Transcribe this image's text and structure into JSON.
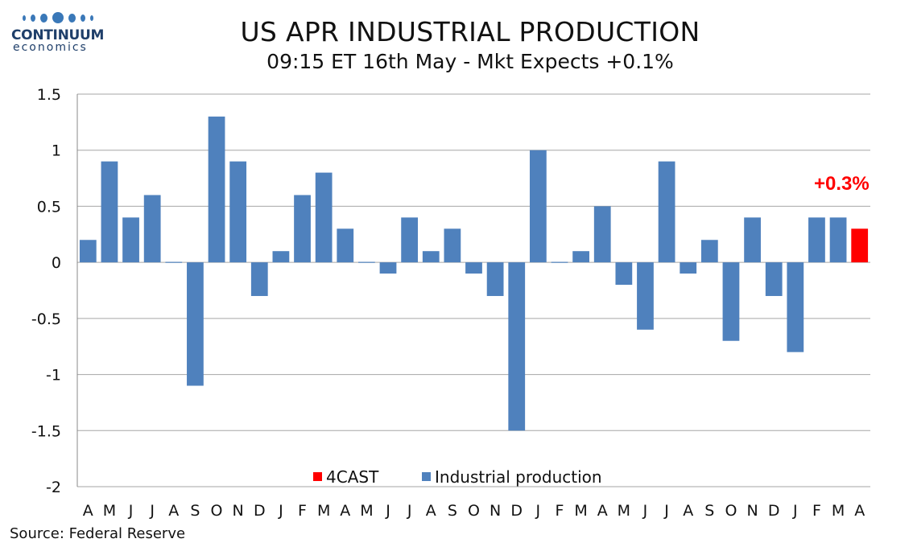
{
  "logo": {
    "word": "CONTINUUM",
    "sub": "economics",
    "color": "#3a78b8"
  },
  "title": "US APR INDUSTRIAL PRODUCTION",
  "subtitle": "09:15 ET 16th May - Mkt Expects +0.1%",
  "source": "Source: Federal Reserve",
  "chart_data": {
    "type": "bar",
    "categories": [
      "A",
      "M",
      "J",
      "J",
      "A",
      "S",
      "O",
      "N",
      "D",
      "J",
      "F",
      "M",
      "A",
      "M",
      "J",
      "J",
      "A",
      "S",
      "O",
      "N",
      "D",
      "J",
      "F",
      "M",
      "A",
      "M",
      "J",
      "J",
      "A",
      "S",
      "O",
      "N",
      "D",
      "J",
      "F",
      "M",
      "A"
    ],
    "series": [
      {
        "name": "Industrial production",
        "color": "#4f81bd",
        "values": [
          0.2,
          0.9,
          0.4,
          0.6,
          0.0,
          -1.1,
          1.3,
          0.9,
          -0.3,
          0.1,
          0.6,
          0.8,
          0.3,
          0.0,
          -0.1,
          0.4,
          0.1,
          0.3,
          -0.1,
          -0.3,
          -1.5,
          1.0,
          0.0,
          0.1,
          0.5,
          -0.2,
          -0.6,
          0.9,
          -0.1,
          0.2,
          -0.7,
          0.4,
          -0.3,
          -0.8,
          0.4,
          0.4,
          null
        ]
      },
      {
        "name": "4CAST",
        "color": "#ff0000",
        "values": [
          null,
          null,
          null,
          null,
          null,
          null,
          null,
          null,
          null,
          null,
          null,
          null,
          null,
          null,
          null,
          null,
          null,
          null,
          null,
          null,
          null,
          null,
          null,
          null,
          null,
          null,
          null,
          null,
          null,
          null,
          null,
          null,
          null,
          null,
          null,
          null,
          0.3
        ]
      }
    ],
    "legend": [
      "4CAST",
      "Industrial production"
    ],
    "legend_placement": "bottom-center",
    "annotation": "+0.3%",
    "ylim": [
      -2,
      1.5
    ],
    "yticks": [
      1.5,
      1,
      0.5,
      0,
      -0.5,
      -1,
      -1.5,
      -2
    ],
    "yticks_text": [
      "1.5",
      "1",
      "0.5",
      "0",
      "-0.5",
      "-1",
      "-1.5",
      "-2"
    ],
    "grid": true,
    "xlabel": "",
    "ylabel": ""
  }
}
